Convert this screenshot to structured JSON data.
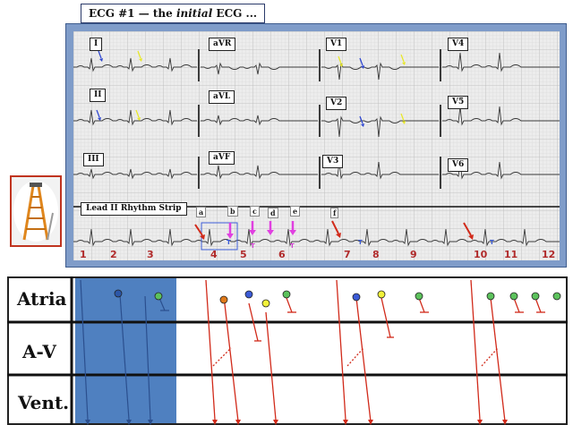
{
  "title": {
    "prefix": "ECG #1 — the ",
    "emphasis": "initial",
    "suffix": " ECG ..."
  },
  "leads": [
    "I",
    "aVR",
    "V1",
    "V4",
    "II",
    "aVL",
    "V2",
    "V5",
    "III",
    "aVF",
    "V3",
    "V6"
  ],
  "rhythm_strip_label": "Lead II Rhythm Strip",
  "beat_numbers": [
    "1",
    "2",
    "3",
    "4",
    "5",
    "6",
    "7",
    "8",
    "9",
    "10",
    "11",
    "12"
  ],
  "markers": [
    "a",
    "b",
    "c",
    "d",
    "e",
    "f"
  ],
  "ladder_rows": [
    "Atria",
    "A-V",
    "Vent."
  ],
  "colors": {
    "frame": "#7f9cc9",
    "grid": "#c9c9c9",
    "red": "#d12a1a",
    "blue_shade": "#4f80c0",
    "magenta": "#e040e0",
    "yellow": "#f2f23a",
    "green": "#5cc25c",
    "blue_dot": "#3b5bd6",
    "orange": "#e07a1a"
  }
}
